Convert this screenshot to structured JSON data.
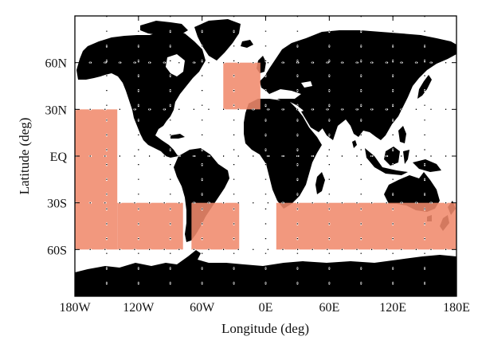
{
  "map": {
    "xlabel": "Longitude (deg)",
    "ylabel": "Latitude (deg)",
    "xlim": [
      -180,
      180
    ],
    "ylim": [
      -90,
      90
    ],
    "x_ticks": [
      {
        "value": -180,
        "label": "180W"
      },
      {
        "value": -120,
        "label": "120W"
      },
      {
        "value": -60,
        "label": "60W"
      },
      {
        "value": 0,
        "label": "0E"
      },
      {
        "value": 60,
        "label": "60E"
      },
      {
        "value": 120,
        "label": "120E"
      },
      {
        "value": 180,
        "label": "180E"
      }
    ],
    "y_ticks": [
      {
        "value": 60,
        "label": "60N"
      },
      {
        "value": 30,
        "label": "30N"
      },
      {
        "value": 0,
        "label": "EQ"
      },
      {
        "value": -30,
        "label": "30S"
      },
      {
        "value": -60,
        "label": "60S"
      }
    ],
    "grid": "dotted",
    "land_color": "#000000",
    "ocean_color": "#ffffff",
    "region_color": "#f08a6c",
    "regions": [
      {
        "lon": [
          -180,
          -140
        ],
        "lat": [
          -60,
          30
        ]
      },
      {
        "lon": [
          -140,
          -78
        ],
        "lat": [
          -60,
          -30
        ]
      },
      {
        "lon": [
          -70,
          -25
        ],
        "lat": [
          -60,
          -30
        ]
      },
      {
        "lon": [
          -40,
          -5
        ],
        "lat": [
          30,
          60
        ]
      },
      {
        "lon": [
          10,
          180
        ],
        "lat": [
          -60,
          -30
        ]
      }
    ]
  }
}
